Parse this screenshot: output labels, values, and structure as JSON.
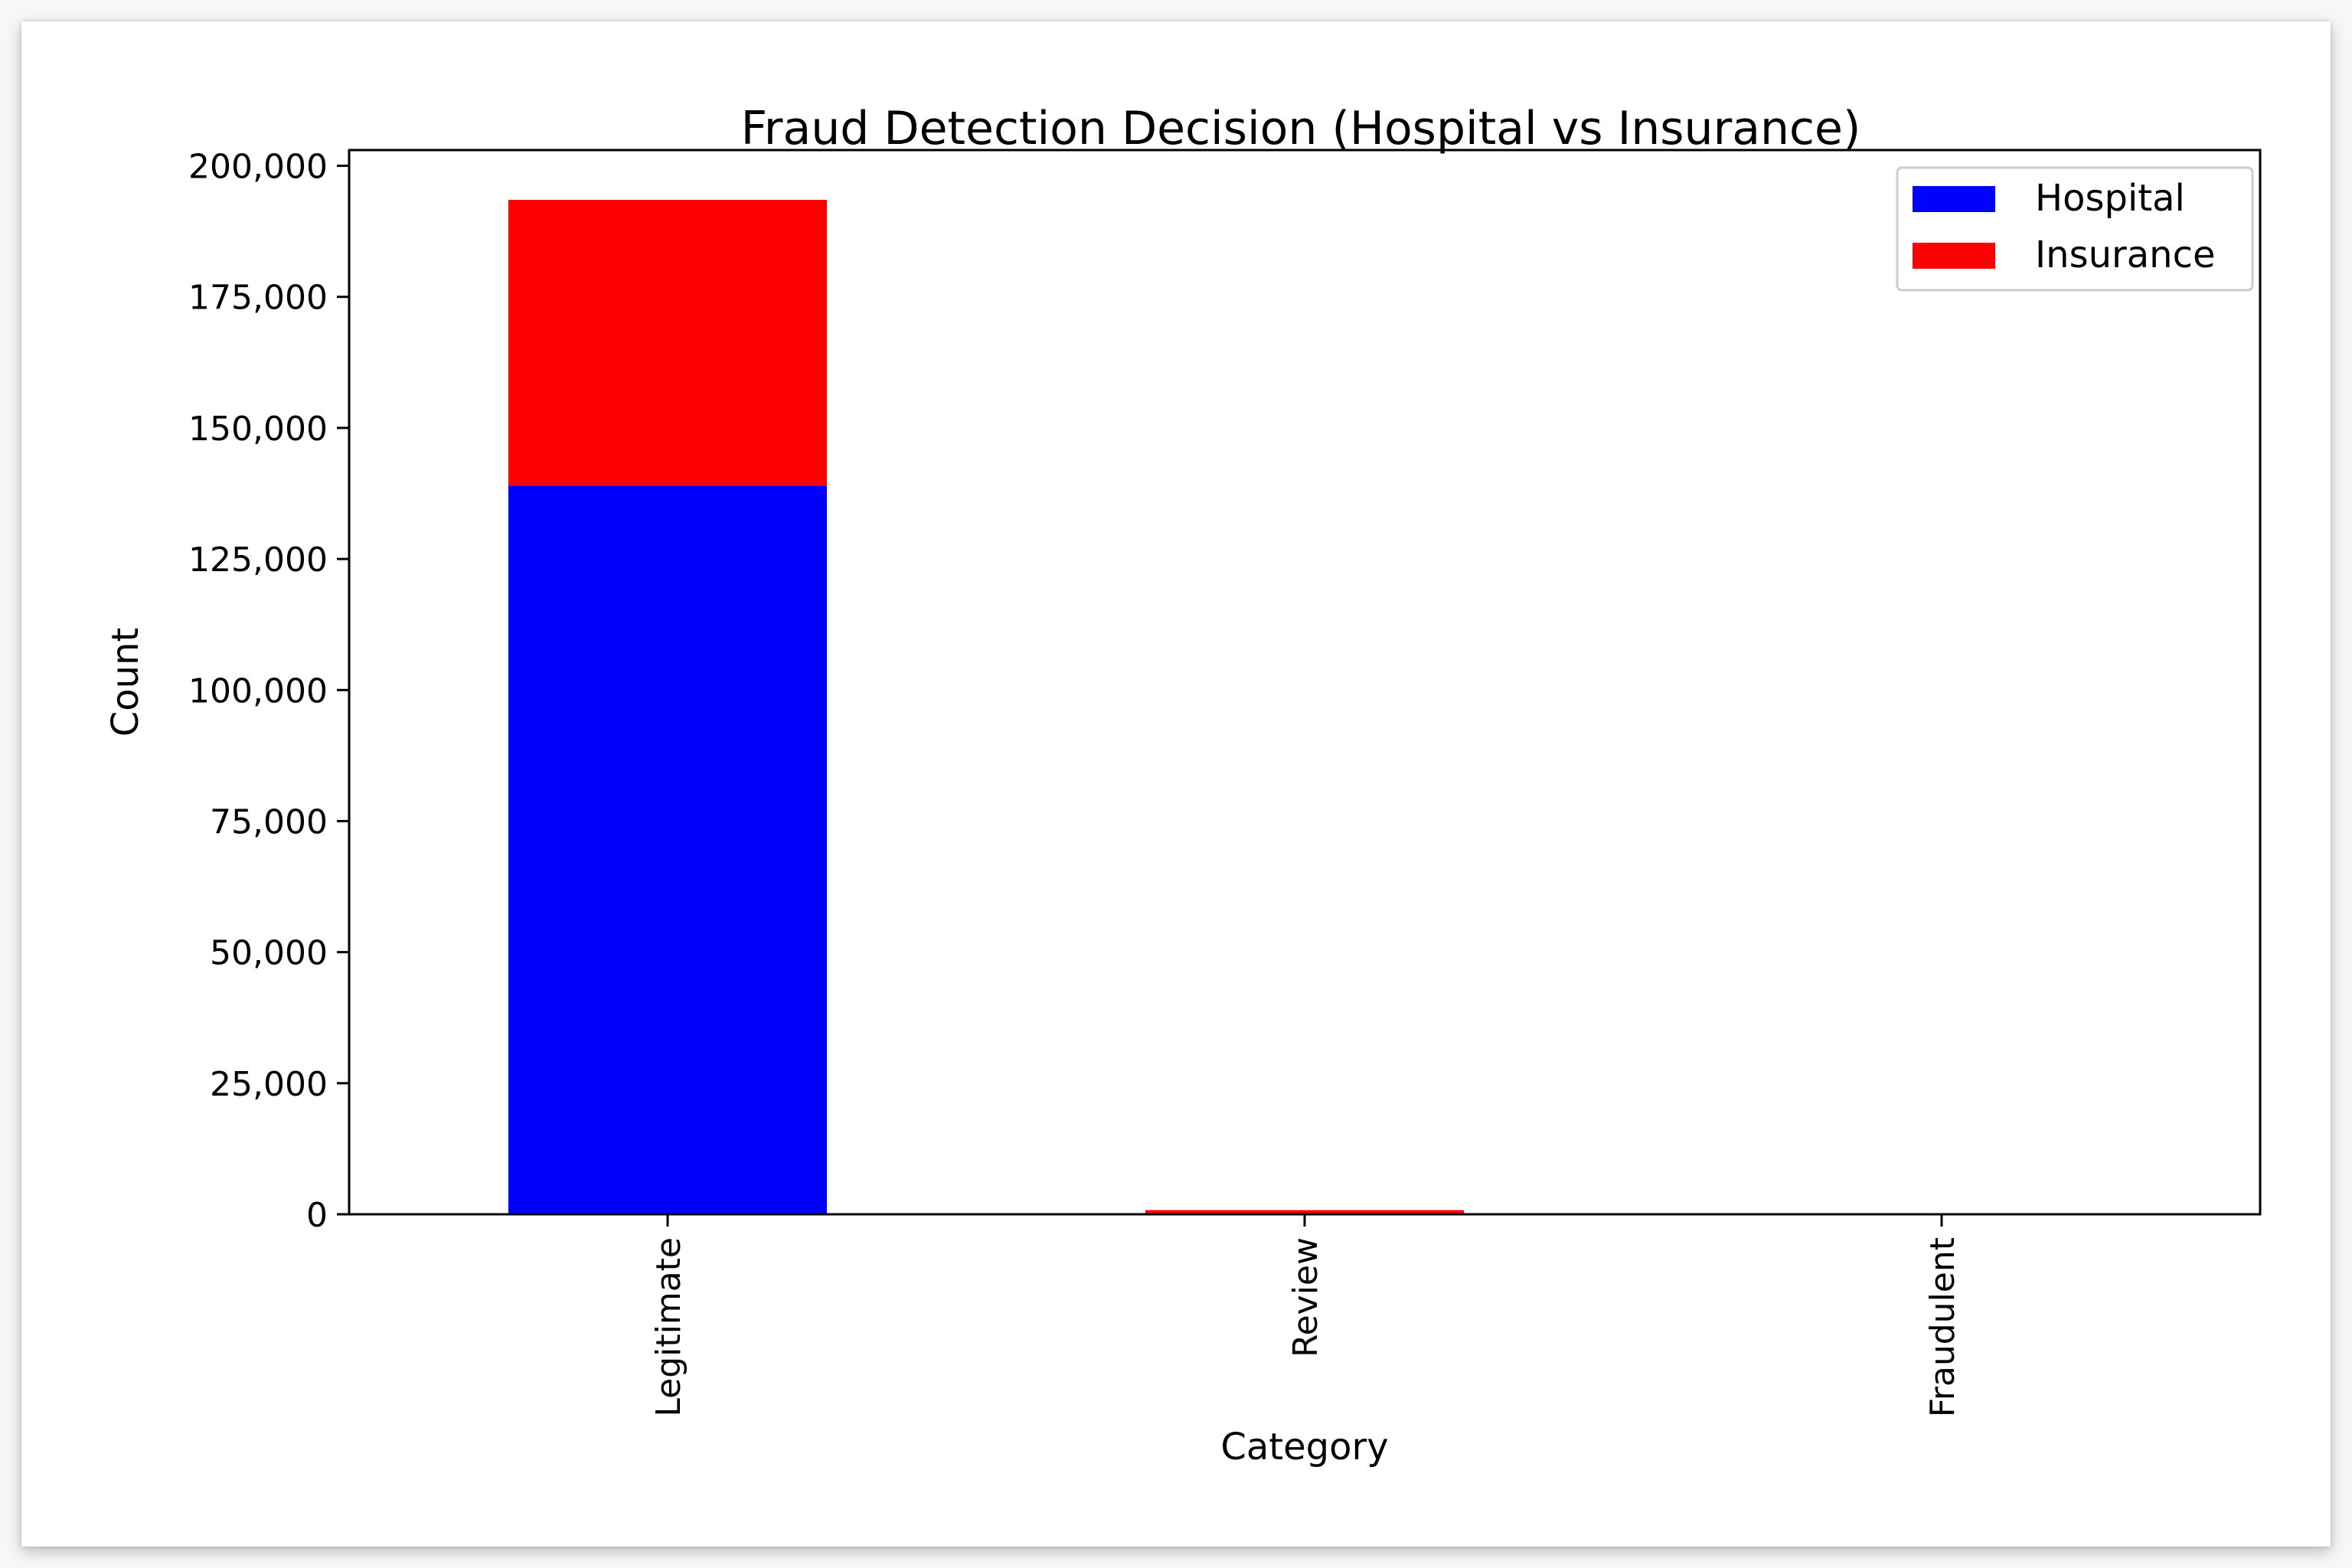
{
  "chart_data": {
    "type": "bar",
    "stacked": true,
    "title": "Fraud Detection Decision (Hospital vs Insurance)",
    "xlabel": "Category",
    "ylabel": "Count",
    "categories": [
      "Legitimate",
      "Review",
      "Fraudulent"
    ],
    "series": [
      {
        "name": "Hospital",
        "color": "#0000ff",
        "values": [
          139000,
          0,
          0
        ]
      },
      {
        "name": "Insurance",
        "color": "#ff0000",
        "values": [
          54500,
          800,
          0
        ]
      }
    ],
    "ylim": [
      0,
      203000
    ],
    "yticks": [
      0,
      25000,
      50000,
      75000,
      100000,
      125000,
      150000,
      175000,
      200000
    ],
    "ytick_labels": [
      "0",
      "25,000",
      "50,000",
      "75,000",
      "100,000",
      "125,000",
      "150,000",
      "175,000",
      "200,000"
    ],
    "xtick_rotation": "vertical",
    "legend_position": "top-right",
    "grid": false
  }
}
